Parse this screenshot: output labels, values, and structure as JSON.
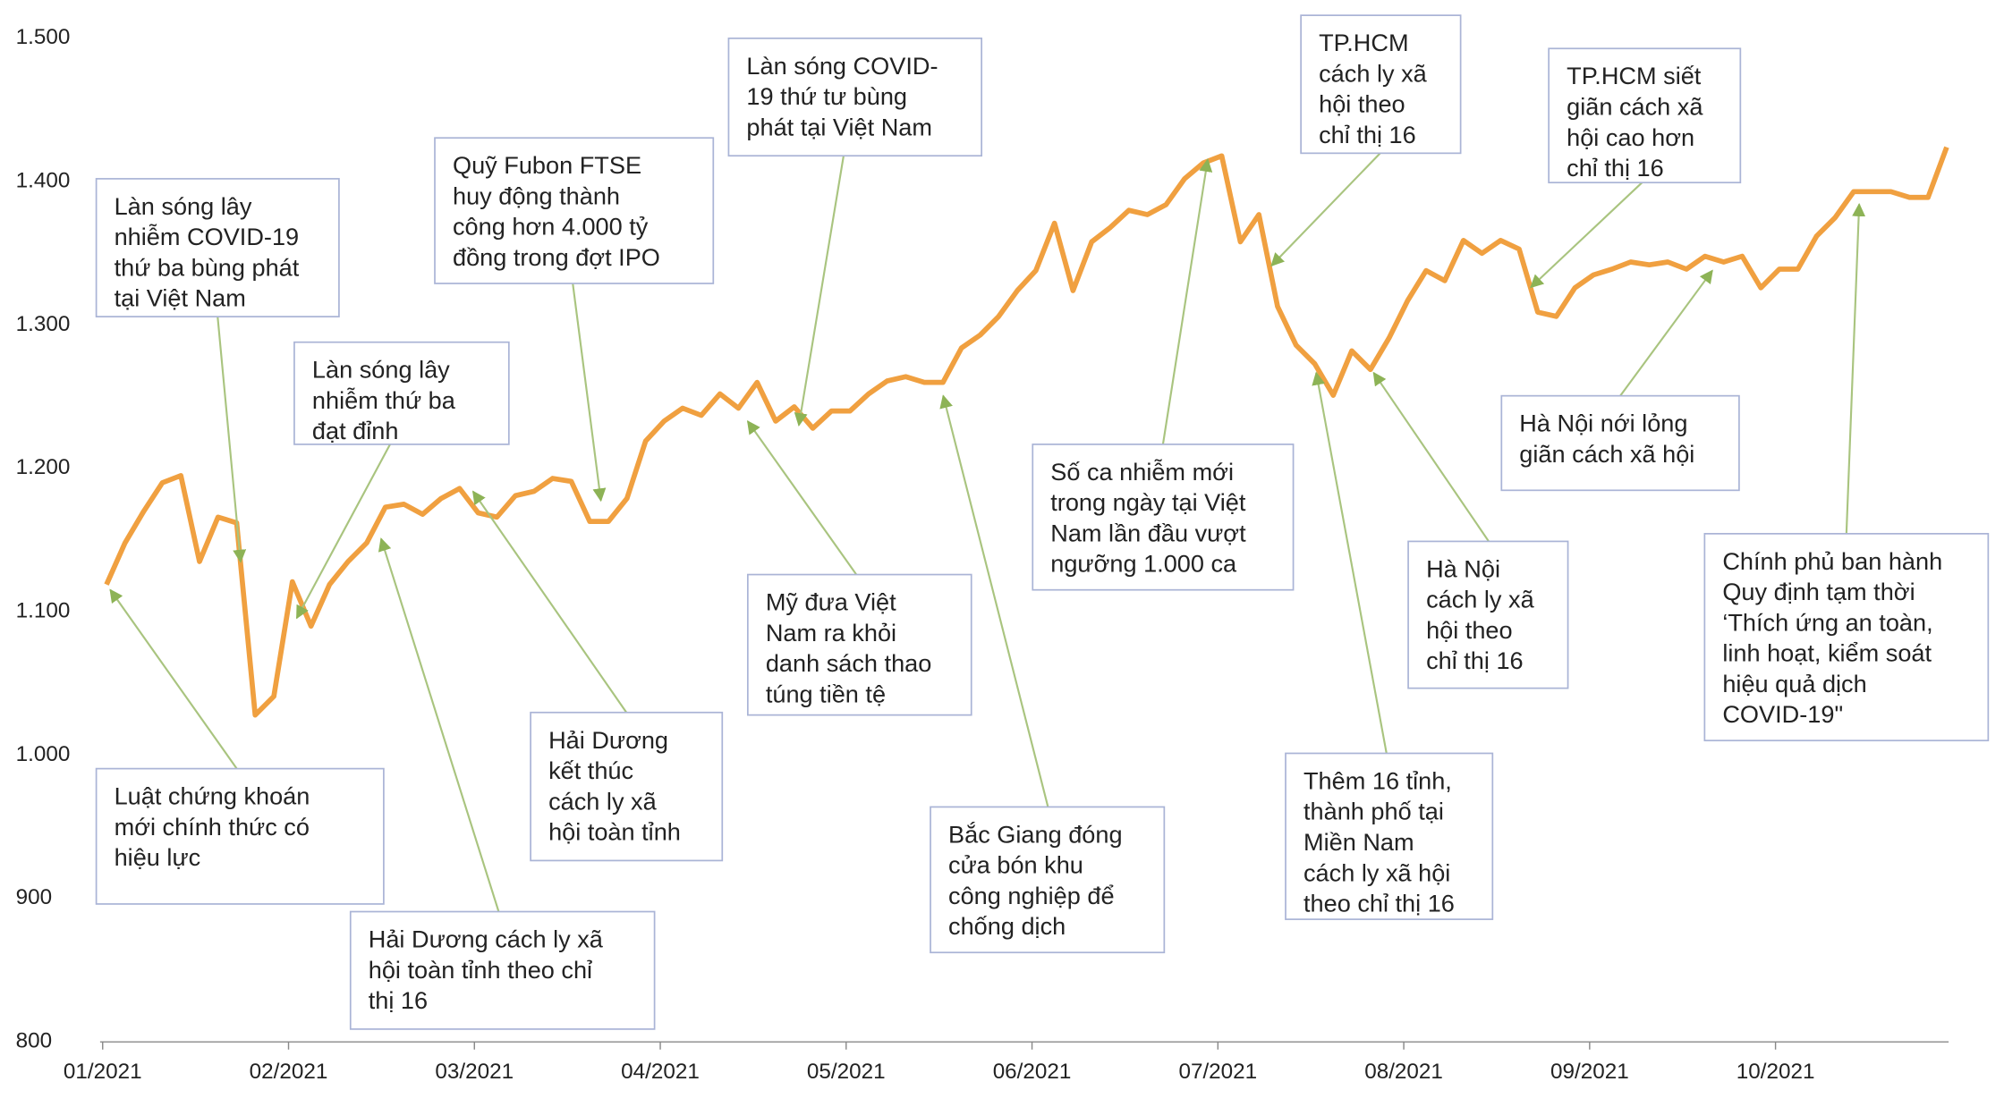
{
  "chart_data": {
    "type": "line",
    "categories": [
      "01/2021",
      null,
      null,
      null,
      null,
      null,
      null,
      null,
      null,
      null,
      "02/2021",
      null,
      null,
      null,
      null,
      null,
      null,
      null,
      null,
      null,
      "03/2021",
      null,
      null,
      null,
      null,
      null,
      null,
      null,
      null,
      null,
      "04/2021",
      null,
      null,
      null,
      null,
      null,
      null,
      null,
      null,
      null,
      "05/2021",
      null,
      null,
      null,
      null,
      null,
      null,
      null,
      null,
      null,
      "06/2021",
      null,
      null,
      null,
      null,
      null,
      null,
      null,
      null,
      null,
      "07/2021",
      null,
      null,
      null,
      null,
      null,
      null,
      null,
      null,
      null,
      "08/2021",
      null,
      null,
      null,
      null,
      null,
      null,
      null,
      null,
      null,
      "09/2021",
      null,
      null,
      null,
      null,
      null,
      null,
      null,
      null,
      null,
      "10/2021",
      null,
      null,
      null,
      null,
      null,
      null,
      null,
      null,
      null
    ],
    "values": [
      1119,
      1148,
      1170,
      1190,
      1195,
      1135,
      1166,
      1162,
      1028,
      1041,
      1121,
      1090,
      1119,
      1135,
      1148,
      1173,
      1175,
      1168,
      1179,
      1186,
      1169,
      1166,
      1181,
      1184,
      1193,
      1191,
      1163,
      1163,
      1179,
      1219,
      1233,
      1242,
      1237,
      1252,
      1242,
      1260,
      1233,
      1243,
      1228,
      1240,
      1240,
      1252,
      1261,
      1264,
      1260,
      1260,
      1284,
      1293,
      1306,
      1324,
      1338,
      1371,
      1324,
      1358,
      1368,
      1380,
      1377,
      1384,
      1402,
      1413,
      1418,
      1358,
      1377,
      1313,
      1286,
      1273,
      1251,
      1282,
      1269,
      1291,
      1317,
      1338,
      1331,
      1359,
      1350,
      1359,
      1353,
      1309,
      1306,
      1326,
      1335,
      1339,
      1344,
      1342,
      1344,
      1339,
      1348,
      1344,
      1348,
      1326,
      1339,
      1339,
      1362,
      1375,
      1393,
      1393,
      1393,
      1389,
      1389,
      1424
    ],
    "color": "#f0a040",
    "ylim": [
      800,
      1500
    ],
    "yticks": [
      800,
      900,
      {
        "value": 1000,
        "label": "1.000"
      },
      {
        "value": 1100,
        "label": "1.100"
      },
      {
        "value": 1200,
        "label": "1.200"
      },
      {
        "value": 1300,
        "label": "1.300"
      },
      {
        "value": 1400,
        "label": "1.400"
      },
      {
        "value": 1500,
        "label": "1.500"
      }
    ],
    "annotations": [
      [
        "Làn sóng lây",
        "nhiễm COVID-19",
        "thứ ba bùng phát",
        "tại Việt Nam"
      ],
      [
        "Luật chứng khoán",
        "mới chính thức có",
        "hiệu lực"
      ],
      [
        "Làn sóng lây",
        "nhiễm thứ ba",
        "đạt đỉnh"
      ],
      [
        "Hải Dương cách ly xã",
        "hội toàn tỉnh theo chỉ",
        "thị 16"
      ],
      [
        "Quỹ Fubon FTSE",
        "huy động thành",
        "công hơn 4.000 tỷ",
        "đồng trong đợt IPO"
      ],
      [
        "Hải Dương",
        "kết thúc",
        "cách ly xã",
        "hội toàn tỉnh"
      ],
      [
        "Làn sóng COVID-",
        "19 thứ tư bùng",
        "phát tại Việt Nam"
      ],
      [
        "Mỹ đưa Việt",
        "Nam ra khỏi",
        "danh sách thao",
        "túng tiền tệ"
      ],
      [
        "Bắc Giang đóng",
        "cửa bón khu",
        "công nghiệp để",
        "chống dịch"
      ],
      [
        "Số ca nhiễm mới",
        "trong ngày tại Việt",
        "Nam lần đầu vượt",
        "ngưỡng 1.000 ca"
      ],
      [
        "TP.HCM",
        "cách ly xã",
        "hội theo",
        "chỉ thị 16"
      ],
      [
        "Thêm 16 tỉnh,",
        "thành phố tại",
        "Miền Nam",
        "cách ly xã hội",
        "theo chỉ thị 16"
      ],
      [
        "Hà Nội",
        "cách ly xã",
        "hội theo",
        "chỉ thị 16"
      ],
      [
        "TP.HCM siết",
        "giãn cách xã",
        "hội cao hơn",
        "chỉ thị 16"
      ],
      [
        "Hà Nội nới lỏng",
        "giãn cách xã hội"
      ],
      [
        "Chính phủ ban hành",
        "Quy định tạm thời",
        "‘Thích ứng an toàn,",
        "linh hoạt, kiểm soát",
        "hiệu quả dịch",
        "COVID-19\""
      ]
    ]
  }
}
